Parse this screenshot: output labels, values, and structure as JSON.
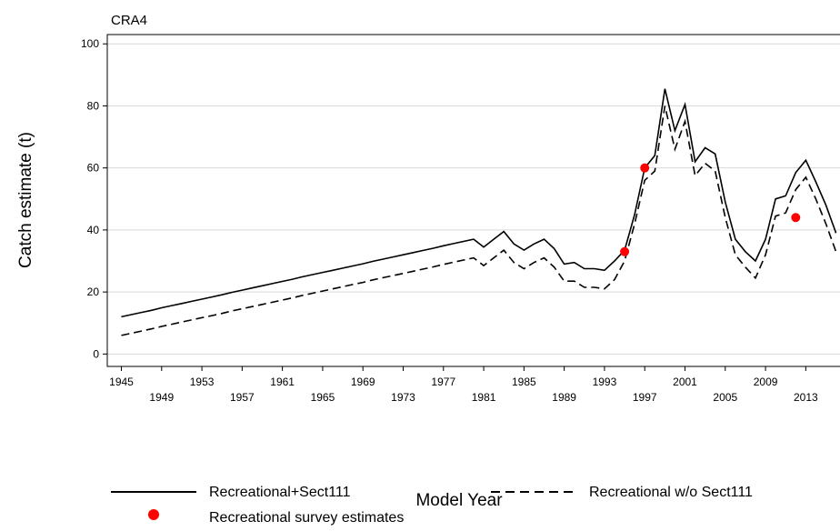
{
  "chart_data": {
    "type": "line",
    "title": "CRA4",
    "x_label": "Model Year",
    "y_label": "Catch estimate (t)",
    "x": [
      1945,
      1946,
      1947,
      1948,
      1949,
      1950,
      1951,
      1952,
      1953,
      1954,
      1955,
      1956,
      1957,
      1958,
      1959,
      1960,
      1961,
      1962,
      1963,
      1964,
      1965,
      1966,
      1967,
      1968,
      1969,
      1970,
      1971,
      1972,
      1973,
      1974,
      1975,
      1976,
      1977,
      1978,
      1979,
      1980,
      1981,
      1982,
      1983,
      1984,
      1985,
      1986,
      1987,
      1988,
      1989,
      1990,
      1991,
      1992,
      1993,
      1994,
      1995,
      1996,
      1997,
      1998,
      1999,
      2000,
      2001,
      2002,
      2003,
      2004,
      2005,
      2006,
      2007,
      2008,
      2009,
      2010,
      2011,
      2012,
      2013,
      2014,
      2015,
      2016
    ],
    "series": [
      {
        "name": "Recreational+Sect111",
        "color": "#000000",
        "dash": "solid",
        "values": [
          12,
          12.7,
          13.4,
          14.1,
          14.9,
          15.6,
          16.3,
          17,
          17.7,
          18.4,
          19.1,
          19.9,
          20.6,
          21.3,
          22,
          22.7,
          23.4,
          24.1,
          24.9,
          25.6,
          26.3,
          27,
          27.7,
          28.4,
          29.1,
          29.9,
          30.6,
          31.3,
          32,
          32.7,
          33.4,
          34.1,
          34.9,
          35.6,
          36.3,
          37,
          34.5,
          37,
          39.5,
          35.5,
          33.5,
          35.5,
          37,
          34,
          29,
          29.5,
          27.5,
          27.5,
          27,
          30,
          33.5,
          45,
          60,
          64,
          85.5,
          72,
          80.5,
          62,
          66.5,
          64.5,
          49,
          37,
          33,
          30,
          37,
          50,
          51,
          58.5,
          62.5,
          55.5,
          48,
          39
        ]
      },
      {
        "name": "Recreational w/o Sect111",
        "color": "#000000",
        "dash": "dashed",
        "values": [
          6,
          6.7,
          7.4,
          8.1,
          8.9,
          9.6,
          10.3,
          11,
          11.7,
          12.4,
          13.1,
          13.9,
          14.6,
          15.3,
          16,
          16.7,
          17.4,
          18.1,
          18.9,
          19.6,
          20.3,
          21,
          21.7,
          22.4,
          23.1,
          23.9,
          24.6,
          25.3,
          26,
          26.7,
          27.4,
          28.1,
          28.9,
          29.6,
          30.3,
          31,
          28.5,
          31,
          33.5,
          29.5,
          27.5,
          29.5,
          31,
          28,
          23.5,
          23.5,
          21.5,
          21.5,
          21,
          24,
          30,
          42,
          56,
          59,
          80,
          66,
          75,
          57.5,
          61.5,
          59,
          44,
          32,
          28,
          24.5,
          32,
          44.5,
          45.5,
          53,
          57,
          50,
          42,
          33
        ]
      },
      {
        "name": "Recreational survey estimates",
        "color": "#ff0000",
        "type": "scatter",
        "x": [
          1995,
          1997,
          2012
        ],
        "values": [
          33,
          60,
          44
        ]
      }
    ],
    "xlim": [
      1943.6,
      2016.4
    ],
    "xticks": [
      1945,
      1949,
      1953,
      1957,
      1961,
      1965,
      1969,
      1973,
      1977,
      1981,
      1985,
      1989,
      1993,
      1997,
      2001,
      2005,
      2009,
      2013
    ],
    "ylim": [
      -4,
      103
    ],
    "yticks": [
      0,
      20,
      40,
      60,
      80,
      100
    ],
    "grid": true
  }
}
